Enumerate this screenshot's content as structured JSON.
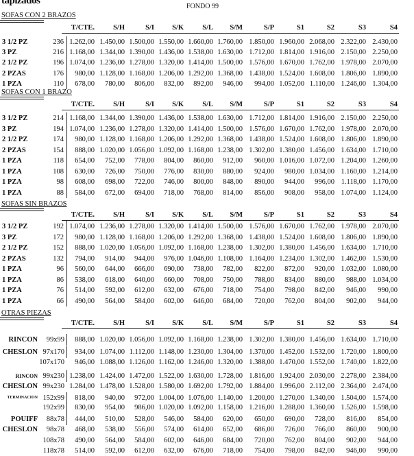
{
  "header": {
    "logo_text": "tapizados",
    "fondo": "FONDO 99"
  },
  "columns": [
    "T/CTE.",
    "S/H",
    "S/I",
    "S/K",
    "S/L",
    "S/M",
    "S/P",
    "S1",
    "S2",
    "S3",
    "S4"
  ],
  "sections": [
    {
      "title": "SOFAS CON 2 BRAZOS",
      "rows": [
        {
          "label": "3 1/2 PZ",
          "size": "236",
          "values": [
            "1.262,00",
            "1.450,00",
            "1.500,00",
            "1.550,00",
            "1.660,00",
            "1.760,00",
            "1.850,00",
            "1.960,00",
            "2.068,00",
            "2.322,00",
            "2.430,00"
          ]
        },
        {
          "label": "3 PZ",
          "size": "216",
          "values": [
            "1.168,00",
            "1.344,00",
            "1.390,00",
            "1.436,00",
            "1.538,00",
            "1.630,00",
            "1.712,00",
            "1.814,00",
            "1.916,00",
            "2.150,00",
            "2.250,00"
          ]
        },
        {
          "label": "2 1/2 PZ",
          "size": "196",
          "values": [
            "1.074,00",
            "1.236,00",
            "1.278,00",
            "1.320,00",
            "1.414,00",
            "1.500,00",
            "1.576,00",
            "1.670,00",
            "1.762,00",
            "1.978,00",
            "2.070,00"
          ]
        },
        {
          "label": "2 PZAS",
          "size": "176",
          "values": [
            "980,00",
            "1.128,00",
            "1.168,00",
            "1.206,00",
            "1.292,00",
            "1.368,00",
            "1.438,00",
            "1.524,00",
            "1.608,00",
            "1.806,00",
            "1.890,00"
          ]
        },
        {
          "label": "1 PZA",
          "size": "110",
          "values": [
            "678,00",
            "780,00",
            "806,00",
            "832,00",
            "892,00",
            "946,00",
            "994,00",
            "1.052,00",
            "1.110,00",
            "1.246,00",
            "1.304,00"
          ]
        }
      ]
    },
    {
      "title": "SOFAS CON 1 BRAZO",
      "rows": [
        {
          "label": "3 1/2 PZ",
          "size": "214",
          "values": [
            "1.168,00",
            "1.344,00",
            "1.390,00",
            "1.436,00",
            "1.538,00",
            "1.630,00",
            "1.712,00",
            "1.814,00",
            "1.916,00",
            "2.150,00",
            "2.250,00"
          ]
        },
        {
          "label": "3 PZ",
          "size": "194",
          "values": [
            "1.074,00",
            "1.236,00",
            "1.278,00",
            "1.320,00",
            "1.414,00",
            "1.500,00",
            "1.576,00",
            "1.670,00",
            "1.762,00",
            "1.978,00",
            "2.070,00"
          ]
        },
        {
          "label": "2 1/2 PZ",
          "size": "174",
          "values": [
            "980,00",
            "1.128,00",
            "1.168,00",
            "1.206,00",
            "1.292,00",
            "1.368,00",
            "1.438,00",
            "1.524,00",
            "1.608,00",
            "1.806,00",
            "1.890,00"
          ]
        },
        {
          "label": "2 PZAS",
          "size": "154",
          "values": [
            "888,00",
            "1.020,00",
            "1.056,00",
            "1.092,00",
            "1.168,00",
            "1.238,00",
            "1.302,00",
            "1.380,00",
            "1.456,00",
            "1.634,00",
            "1.710,00"
          ]
        },
        {
          "label": "1 PZA",
          "size": "118",
          "values": [
            "654,00",
            "752,00",
            "778,00",
            "804,00",
            "860,00",
            "912,00",
            "960,00",
            "1.016,00",
            "1.072,00",
            "1.204,00",
            "1.260,00"
          ]
        },
        {
          "label": "1 PZA",
          "size": "108",
          "values": [
            "630,00",
            "726,00",
            "750,00",
            "776,00",
            "830,00",
            "880,00",
            "924,00",
            "980,00",
            "1.034,00",
            "1.160,00",
            "1.214,00"
          ]
        },
        {
          "label": "1 PZA",
          "size": "98",
          "values": [
            "608,00",
            "698,00",
            "722,00",
            "746,00",
            "800,00",
            "848,00",
            "890,00",
            "944,00",
            "996,00",
            "1.118,00",
            "1.170,00"
          ]
        },
        {
          "label": "1 PZA",
          "size": "88",
          "values": [
            "584,00",
            "672,00",
            "694,00",
            "718,00",
            "768,00",
            "814,00",
            "856,00",
            "908,00",
            "958,00",
            "1.074,00",
            "1.124,00"
          ]
        }
      ]
    },
    {
      "title": "SOFAS SIN BRAZOS",
      "rows": [
        {
          "label": "3 1/2 PZ",
          "size": "192",
          "values": [
            "1.074,00",
            "1.236,00",
            "1.278,00",
            "1.320,00",
            "1.414,00",
            "1.500,00",
            "1.576,00",
            "1.670,00",
            "1.762,00",
            "1.978,00",
            "2.070,00"
          ]
        },
        {
          "label": "3 PZ",
          "size": "172",
          "values": [
            "980,00",
            "1.128,00",
            "1.168,00",
            "1.206,00",
            "1.292,00",
            "1.368,00",
            "1.438,00",
            "1.524,00",
            "1.608,00",
            "1.806,00",
            "1.890,00"
          ]
        },
        {
          "label": "2 1/2 PZ",
          "size": "152",
          "values": [
            "888,00",
            "1.020,00",
            "1.056,00",
            "1.092,00",
            "1.168,00",
            "1.238,00",
            "1.302,00",
            "1.380,00",
            "1.456,00",
            "1.634,00",
            "1.710,00"
          ]
        },
        {
          "label": "2 PZAS",
          "size": "132",
          "values": [
            "794,00",
            "914,00",
            "944,00",
            "976,00",
            "1.046,00",
            "1.108,00",
            "1.164,00",
            "1.234,00",
            "1.302,00",
            "1.462,00",
            "1.530,00"
          ]
        },
        {
          "label": "1 PZA",
          "size": "96",
          "values": [
            "560,00",
            "644,00",
            "666,00",
            "690,00",
            "738,00",
            "782,00",
            "822,00",
            "872,00",
            "920,00",
            "1.032,00",
            "1.080,00"
          ]
        },
        {
          "label": "1 PZA",
          "size": "86",
          "values": [
            "538,00",
            "618,00",
            "640,00",
            "660,00",
            "708,00",
            "750,00",
            "788,00",
            "834,00",
            "880,00",
            "988,00",
            "1.034,00"
          ]
        },
        {
          "label": "1 PZA",
          "size": "76",
          "values": [
            "514,00",
            "592,00",
            "612,00",
            "632,00",
            "676,00",
            "718,00",
            "754,00",
            "798,00",
            "842,00",
            "946,00",
            "990,00"
          ]
        },
        {
          "label": "1 PZA",
          "size": "66",
          "values": [
            "490,00",
            "564,00",
            "584,00",
            "602,00",
            "646,00",
            "684,00",
            "720,00",
            "762,00",
            "804,00",
            "902,00",
            "944,00"
          ]
        }
      ]
    },
    {
      "title": "OTRAS PIEZAS",
      "rows": [
        {
          "label": "RINCON",
          "size": "99x99",
          "values": [
            "888,00",
            "1.020,00",
            "1.056,00",
            "1.092,00",
            "1.168,00",
            "1.238,00",
            "1.302,00",
            "1.380,00",
            "1.456,00",
            "1.634,00",
            "1.710,00"
          ]
        },
        {
          "label": "CHESLON",
          "size": "97x170",
          "values": [
            "934,00",
            "1.074,00",
            "1.112,00",
            "1.148,00",
            "1.230,00",
            "1.304,00",
            "1.370,00",
            "1.452,00",
            "1.532,00",
            "1.720,00",
            "1.800,00"
          ]
        },
        {
          "label": "",
          "size": "107x170",
          "values": [
            "946,00",
            "1.088,00",
            "1.126,00",
            "1.162,00",
            "1.246,00",
            "1.320,00",
            "1.388,00",
            "1.470,00",
            "1.552,00",
            "1.740,00",
            "1.822,00"
          ]
        },
        {
          "label": "RINCON",
          "size": "99x230",
          "values": [
            "1.238,00",
            "1.424,00",
            "1.472,00",
            "1.522,00",
            "1.630,00",
            "1.728,00",
            "1.816,00",
            "1.924,00",
            "2.030,00",
            "2.278,00",
            "2.384,00"
          ]
        },
        {
          "label": "CHESLON",
          "size": "99x230",
          "values": [
            "1.284,00",
            "1.478,00",
            "1.528,00",
            "1.580,00",
            "1.692,00",
            "1.792,00",
            "1.884,00",
            "1.996,00",
            "2.112,00",
            "2.364,00",
            "2.474,00"
          ]
        },
        {
          "label": "TERMINACION",
          "size": "152x99",
          "values": [
            "818,00",
            "940,00",
            "972,00",
            "1.004,00",
            "1.076,00",
            "1.140,00",
            "1.200,00",
            "1.270,00",
            "1.340,00",
            "1.504,00",
            "1.574,00"
          ]
        },
        {
          "label": "",
          "size": "192x99",
          "values": [
            "830,00",
            "954,00",
            "986,00",
            "1.020,00",
            "1.092,00",
            "1.158,00",
            "1.216,00",
            "1.288,00",
            "1.360,00",
            "1.526,00",
            "1.598,00"
          ]
        },
        {
          "label": "POUIFF",
          "size": "88x78",
          "values": [
            "444,00",
            "510,00",
            "528,00",
            "546,00",
            "584,00",
            "620,00",
            "650,00",
            "690,00",
            "728,00",
            "816,00",
            "854,00"
          ]
        },
        {
          "label": "CHESLON",
          "size": "98x78",
          "values": [
            "468,00",
            "538,00",
            "556,00",
            "574,00",
            "614,00",
            "652,00",
            "686,00",
            "726,00",
            "766,00",
            "860,00",
            "900,00"
          ]
        },
        {
          "label": "",
          "size": "108x78",
          "values": [
            "490,00",
            "564,00",
            "584,00",
            "602,00",
            "646,00",
            "684,00",
            "720,00",
            "762,00",
            "804,00",
            "902,00",
            "944,00"
          ]
        },
        {
          "label": "",
          "size": "118x78",
          "values": [
            "514,00",
            "592,00",
            "612,00",
            "632,00",
            "676,00",
            "718,00",
            "754,00",
            "798,00",
            "842,00",
            "946,00",
            "990,00"
          ]
        }
      ]
    }
  ]
}
